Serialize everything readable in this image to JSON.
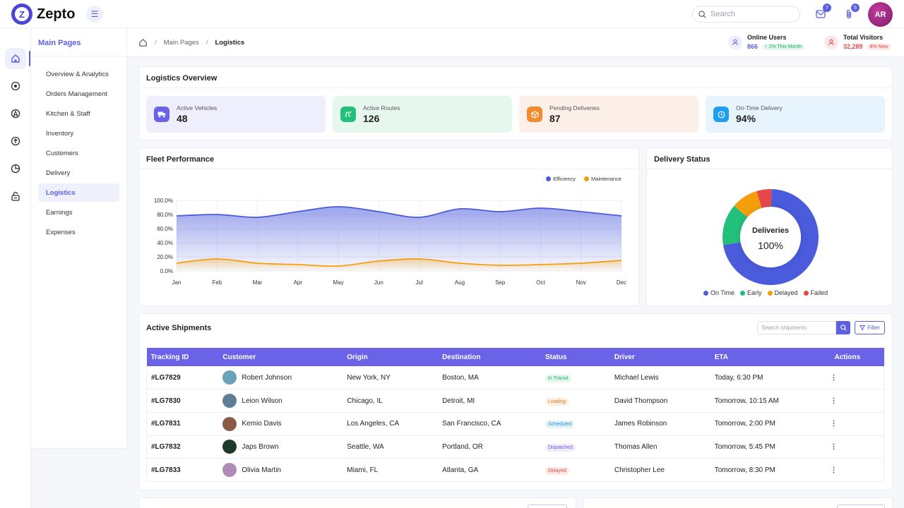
{
  "app": {
    "name": "Zepto",
    "logo_letter": "Z"
  },
  "topbar": {
    "search_placeholder": "Search",
    "notifications": {
      "icon": "mail-icon",
      "count": "7"
    },
    "attachments": {
      "icon": "paperclip-icon",
      "count": "5"
    },
    "user_initials": "AR"
  },
  "rail": {
    "items": [
      {
        "name": "home-icon",
        "active": true
      },
      {
        "name": "target-icon",
        "active": false
      },
      {
        "name": "compass-icon",
        "active": false
      },
      {
        "name": "upload-circle-icon",
        "active": false
      },
      {
        "name": "pie-chart-icon",
        "active": false
      },
      {
        "name": "lock-icon",
        "active": false
      }
    ]
  },
  "sidebar": {
    "title": "Main Pages",
    "items": [
      {
        "label": "Overview & Analytics"
      },
      {
        "label": "Orders Management"
      },
      {
        "label": "Kitchen & Staff"
      },
      {
        "label": "Inventory"
      },
      {
        "label": "Customers"
      },
      {
        "label": "Delivery"
      },
      {
        "label": "Logistics"
      },
      {
        "label": "Earnings"
      },
      {
        "label": "Expenses"
      }
    ]
  },
  "breadcrumb": {
    "parent": "Main Pages",
    "current": "Logistics",
    "sep": "/"
  },
  "header_stats": {
    "online": {
      "label": "Online Users",
      "value": "866",
      "change": "↑ 2% This Month"
    },
    "visitors": {
      "label": "Total Visitors",
      "value": "32,289",
      "change": "8% New"
    }
  },
  "overview": {
    "title": "Logistics Overview",
    "kpis": [
      {
        "label": "Active Vehicles",
        "value": "48",
        "icon": "truck-icon",
        "color": "#6a63e8",
        "bg": "#eeeefc"
      },
      {
        "label": "Active Routes",
        "value": "126",
        "icon": "route-icon",
        "color": "#22c07a",
        "bg": "#e6f7ef"
      },
      {
        "label": "Pending Deliveries",
        "value": "87",
        "icon": "package-icon",
        "color": "#f28a2e",
        "bg": "#fdf0e8"
      },
      {
        "label": "On-Time Delivery",
        "value": "94%",
        "icon": "clock-icon",
        "color": "#1f9ef0",
        "bg": "#e8f4fd"
      }
    ]
  },
  "fleet": {
    "title": "Fleet Performance"
  },
  "delivery_status": {
    "title": "Delivery Status",
    "center_label": "Deliveries",
    "center_value": "100%"
  },
  "chart_data": [
    {
      "type": "area",
      "categories": [
        "Jan",
        "Feb",
        "Mar",
        "Apr",
        "May",
        "Jun",
        "Jul",
        "Aug",
        "Sep",
        "Oct",
        "Nov",
        "Dec"
      ],
      "series": [
        {
          "name": "Efficiency",
          "color": "#4a5bdc",
          "values": [
            78,
            80,
            76,
            84,
            91,
            84,
            76,
            88,
            84,
            89,
            84,
            78
          ]
        },
        {
          "name": "Maintenance",
          "color": "#f59e0b",
          "values": [
            11,
            17,
            11,
            9,
            7,
            14,
            17,
            11,
            8,
            9,
            11,
            15
          ]
        }
      ],
      "y_ticks": [
        "0.0%",
        "20.0%",
        "40.0%",
        "60.0%",
        "80.0%",
        "100.0%"
      ],
      "ylim": [
        0,
        100
      ],
      "grid": true,
      "legend": "top-right"
    },
    {
      "type": "pie",
      "donut": true,
      "labels": [
        "On Time",
        "Early",
        "Delayed",
        "Failed"
      ],
      "values": [
        72,
        14,
        9,
        5
      ],
      "colors": [
        "#4a5bdc",
        "#22c07a",
        "#f59e0b",
        "#e64848"
      ],
      "legend": "bottom"
    }
  ],
  "shipments": {
    "title": "Active Shipments",
    "search_placeholder": "Search shipments",
    "filter_label": "Filter",
    "columns": [
      "Tracking ID",
      "Customer",
      "Origin",
      "Destination",
      "Status",
      "Driver",
      "ETA",
      "Actions"
    ],
    "rows": [
      {
        "id": "#LG7829",
        "customer": "Robert Johnson",
        "origin": "New York, NY",
        "destination": "Boston, MA",
        "status": "In Transit",
        "status_color": "#1fae6a",
        "status_bg": "#e4f7ee",
        "driver": "Michael Lewis",
        "eta": "Today, 6:30 PM",
        "avatar": "#6aa3b8"
      },
      {
        "id": "#LG7830",
        "customer": "Leion Wilson",
        "origin": "Chicago, IL",
        "destination": "Detroit, MI",
        "status": "Loading",
        "status_color": "#e67a1f",
        "status_bg": "#fdefe3",
        "driver": "David Thompson",
        "eta": "Tomorrow, 10:15 AM",
        "avatar": "#5d7e95"
      },
      {
        "id": "#LG7831",
        "customer": "Kemio Davis",
        "origin": "Los Angeles, CA",
        "destination": "San Francisco, CA",
        "status": "Scheduled",
        "status_color": "#1f8fd6",
        "status_bg": "#e4f2fc",
        "driver": "James Robinson",
        "eta": "Tomorrow, 2:00 PM",
        "avatar": "#8a5a45"
      },
      {
        "id": "#LG7832",
        "customer": "Japs Brown",
        "origin": "Seattle, WA",
        "destination": "Portland, OR",
        "status": "Dispatched",
        "status_color": "#7a5ad8",
        "status_bg": "#efeafc",
        "driver": "Thomas Allen",
        "eta": "Tomorrow, 5:45 PM",
        "avatar": "#1f3a2a"
      },
      {
        "id": "#LG7833",
        "customer": "Olivia Martin",
        "origin": "Miami, FL",
        "destination": "Atlanta, GA",
        "status": "Delayed",
        "status_color": "#e64848",
        "status_bg": "#fde8e8",
        "driver": "Christopher Lee",
        "eta": "Tomorrow, 8:30 PM",
        "avatar": "#b08ab8"
      }
    ],
    "actions_label": "⋮"
  }
}
